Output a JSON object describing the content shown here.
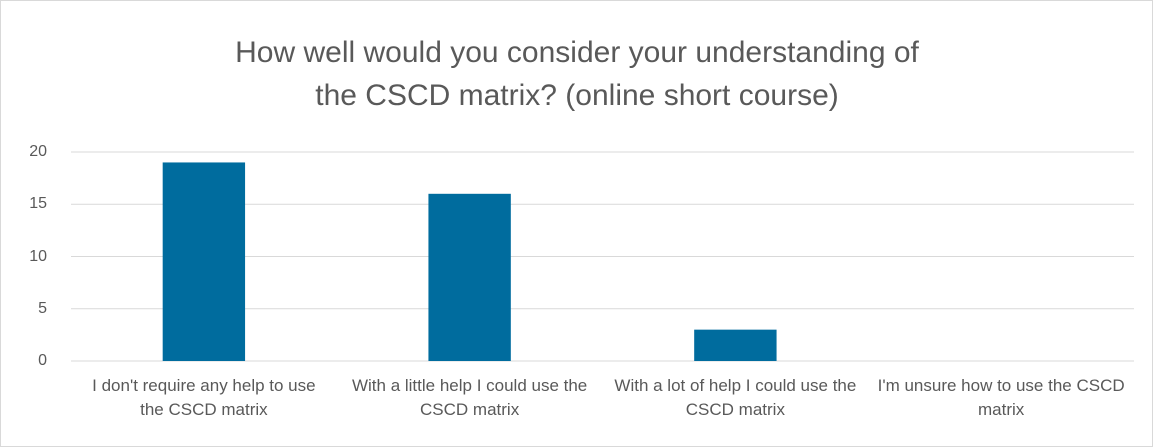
{
  "chart_data": {
    "type": "bar",
    "title": "How well would you consider your understanding of the CSCD matrix? (online short course)",
    "categories": [
      "I don't require any help to use the CSCD matrix",
      "With a little help I could use the CSCD matrix",
      "With a lot of help I could use the CSCD matrix",
      "I'm unsure how to use the CSCD matrix"
    ],
    "values": [
      19,
      16,
      3,
      0
    ],
    "color": "#006c9e",
    "ylim": [
      0,
      20
    ],
    "yticks": [
      0,
      5,
      10,
      15,
      20
    ],
    "grid": true
  }
}
